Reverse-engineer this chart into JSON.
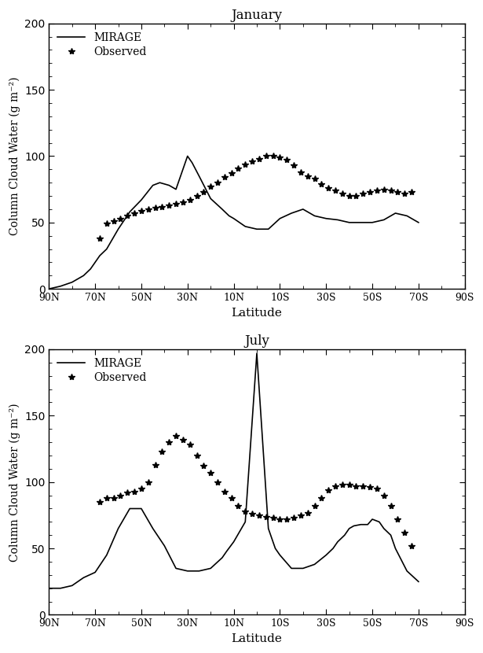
{
  "title_jan": "January",
  "title_jul": "July",
  "ylabel": "Column Cloud Water (g m⁻²)",
  "xlabel": "Latitude",
  "ylim": [
    0,
    200
  ],
  "yticks": [
    0,
    50,
    100,
    150,
    200
  ],
  "xticks": [
    90,
    70,
    50,
    30,
    10,
    -10,
    -30,
    -50,
    -70,
    -90
  ],
  "xticklabels": [
    "90N",
    "70N",
    "50N",
    "30N",
    "10N",
    "10S",
    "30S",
    "50S",
    "70S",
    "90S"
  ],
  "legend_mirage": "MIRAGE",
  "legend_obs": "Observed",
  "line_color": "#000000",
  "bg_color": "#ffffff",
  "jan_mirage_x": [
    90,
    85,
    80,
    75,
    72,
    68,
    65,
    60,
    55,
    50,
    45,
    42,
    38,
    35,
    30,
    28,
    25,
    20,
    15,
    12,
    10,
    5,
    0,
    -5,
    -10,
    -15,
    -20,
    -25,
    -30,
    -35,
    -40,
    -45,
    -50,
    -55,
    -60,
    -65,
    -70
  ],
  "jan_mirage_y": [
    0,
    2,
    5,
    10,
    15,
    25,
    30,
    45,
    58,
    67,
    78,
    80,
    78,
    75,
    100,
    95,
    85,
    68,
    60,
    55,
    53,
    47,
    45,
    45,
    53,
    57,
    60,
    55,
    53,
    52,
    50,
    50,
    50,
    52,
    57,
    55,
    50
  ],
  "jan_obs_x": [
    68,
    65,
    62,
    59,
    56,
    53,
    50,
    47,
    44,
    41,
    38,
    35,
    32,
    29,
    26,
    23,
    20,
    17,
    14,
    11,
    8,
    5,
    2,
    -1,
    -4,
    -7,
    -10,
    -13,
    -16,
    -19,
    -22,
    -25,
    -28,
    -31,
    -34,
    -37,
    -40,
    -43,
    -46,
    -49,
    -52,
    -55,
    -58,
    -61,
    -64,
    -67
  ],
  "jan_obs_y": [
    38,
    49,
    51,
    53,
    55,
    57,
    59,
    60,
    61,
    62,
    63,
    64,
    65,
    67,
    70,
    73,
    77,
    80,
    84,
    87,
    91,
    94,
    96,
    98,
    100,
    100,
    99,
    97,
    93,
    88,
    85,
    83,
    79,
    76,
    74,
    72,
    70,
    70,
    72,
    73,
    74,
    75,
    74,
    73,
    72,
    73
  ],
  "jul_mirage_x": [
    90,
    85,
    80,
    75,
    70,
    65,
    60,
    55,
    50,
    45,
    40,
    35,
    30,
    25,
    20,
    15,
    13,
    10,
    5,
    0,
    -5,
    -8,
    -10,
    -15,
    -20,
    -25,
    -30,
    -33,
    -35,
    -38,
    -40,
    -42,
    -45,
    -48,
    -50,
    -53,
    -55,
    -58,
    -60,
    -65,
    -70
  ],
  "jul_mirage_y": [
    20,
    20,
    22,
    28,
    32,
    45,
    65,
    80,
    80,
    65,
    52,
    35,
    33,
    33,
    35,
    43,
    48,
    55,
    70,
    197,
    65,
    50,
    45,
    35,
    35,
    38,
    45,
    50,
    55,
    60,
    65,
    67,
    68,
    68,
    72,
    70,
    65,
    60,
    50,
    33,
    25
  ],
  "jul_obs_x": [
    68,
    65,
    62,
    59,
    56,
    53,
    50,
    47,
    44,
    41,
    38,
    35,
    32,
    29,
    26,
    23,
    20,
    17,
    14,
    11,
    8,
    5,
    2,
    -1,
    -4,
    -7,
    -10,
    -13,
    -16,
    -19,
    -22,
    -25,
    -28,
    -31,
    -34,
    -37,
    -40,
    -43,
    -46,
    -49,
    -52,
    -55,
    -58,
    -61,
    -64,
    -67
  ],
  "jul_obs_y": [
    85,
    88,
    88,
    90,
    92,
    93,
    95,
    100,
    113,
    123,
    130,
    135,
    132,
    128,
    120,
    112,
    107,
    100,
    93,
    88,
    82,
    78,
    76,
    75,
    74,
    73,
    72,
    72,
    73,
    75,
    77,
    82,
    88,
    94,
    97,
    98,
    98,
    97,
    97,
    96,
    95,
    90,
    82,
    72,
    62,
    52
  ]
}
